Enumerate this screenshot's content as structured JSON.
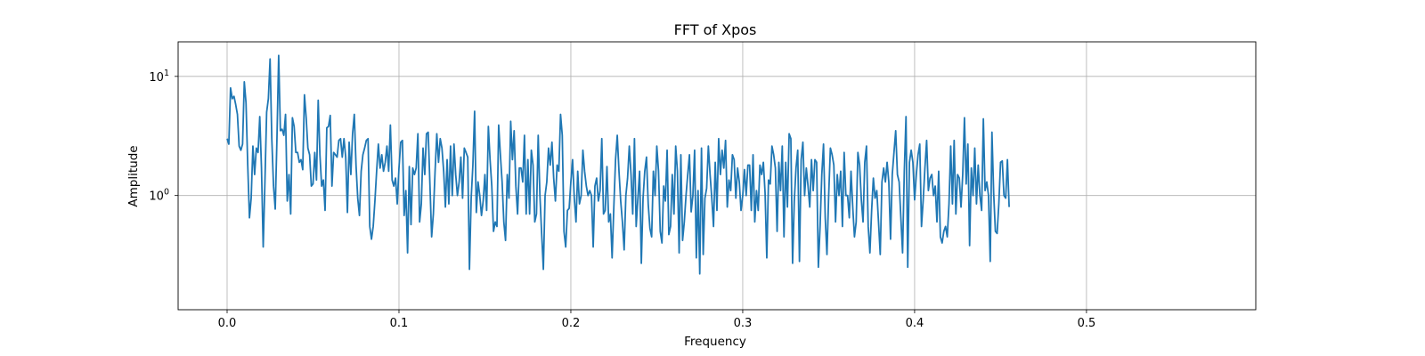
{
  "chart_data": {
    "type": "line",
    "title": "FFT of Xpos",
    "xlabel": "Frequency",
    "ylabel": "Amplitude",
    "xlim": [
      -0.0285,
      0.5985
    ],
    "ylim": [
      0.11,
      19.5
    ],
    "y_scale": "log",
    "grid": true,
    "legend": "none",
    "line_color": "#1f77b4",
    "x_ticks": [
      {
        "value": 0.0,
        "label": "0.0"
      },
      {
        "value": 0.1,
        "label": "0.1"
      },
      {
        "value": 0.2,
        "label": "0.2"
      },
      {
        "value": 0.3,
        "label": "0.3"
      },
      {
        "value": 0.4,
        "label": "0.4"
      },
      {
        "value": 0.5,
        "label": "0.5"
      }
    ],
    "y_ticks": [
      {
        "value": 1,
        "base": "10",
        "exp": "0"
      },
      {
        "value": 10,
        "base": "10",
        "exp": "1"
      }
    ],
    "series": [
      {
        "x_start": 0.0,
        "x_step": 0.001,
        "values": [
          3.0,
          2.7,
          8.0,
          6.5,
          6.8,
          5.8,
          4.8,
          2.6,
          2.4,
          2.7,
          9.0,
          6.0,
          1.8,
          0.65,
          0.95,
          2.6,
          1.5,
          2.5,
          2.3,
          4.6,
          1.7,
          0.37,
          1.3,
          5.0,
          6.5,
          14.0,
          3.0,
          1.2,
          0.77,
          3.0,
          15.0,
          3.5,
          3.6,
          3.2,
          4.8,
          0.9,
          1.5,
          0.7,
          4.5,
          3.8,
          2.3,
          2.3,
          1.9,
          2.0,
          1.65,
          7.0,
          4.5,
          2.5,
          2.2,
          1.2,
          1.25,
          2.3,
          1.35,
          6.3,
          2.2,
          1.2,
          1.35,
          0.75,
          3.7,
          3.8,
          4.7,
          1.2,
          2.3,
          2.2,
          2.1,
          2.9,
          3.0,
          2.1,
          3.0,
          2.1,
          0.72,
          2.8,
          1.5,
          3.3,
          4.8,
          1.8,
          0.95,
          0.68,
          1.6,
          2.2,
          2.5,
          2.9,
          3.0,
          0.55,
          0.43,
          0.55,
          0.9,
          1.6,
          2.7,
          1.7,
          2.2,
          1.6,
          1.9,
          2.6,
          1.6,
          3.9,
          1.35,
          1.2,
          1.4,
          0.85,
          1.7,
          2.8,
          2.9,
          0.68,
          1.1,
          0.33,
          1.75,
          0.57,
          1.7,
          1.5,
          1.7,
          3.3,
          0.6,
          0.85,
          2.5,
          1.5,
          3.3,
          3.4,
          1.25,
          0.45,
          0.7,
          1.6,
          3.3,
          1.9,
          3.0,
          2.5,
          1.6,
          0.8,
          2.0,
          0.85,
          2.6,
          1.0,
          2.7,
          1.5,
          1.0,
          1.3,
          2.1,
          0.95,
          2.5,
          2.3,
          2.1,
          0.24,
          0.95,
          1.8,
          5.1,
          0.72,
          1.3,
          1.0,
          0.68,
          0.9,
          1.5,
          0.75,
          3.8,
          2.0,
          1.2,
          0.5,
          0.6,
          0.55,
          3.9,
          2.2,
          1.3,
          0.6,
          0.42,
          1.5,
          0.95,
          4.2,
          2.0,
          3.5,
          1.2,
          0.7,
          1.7,
          1.7,
          1.3,
          3.2,
          0.7,
          2.0,
          0.7,
          2.4,
          1.8,
          0.6,
          0.7,
          3.2,
          1.0,
          0.48,
          0.24,
          1.0,
          1.3,
          2.5,
          1.8,
          2.8,
          1.4,
          0.9,
          1.8,
          1.6,
          4.8,
          3.2,
          0.5,
          0.37,
          0.75,
          0.78,
          1.3,
          2.0,
          0.95,
          0.6,
          1.6,
          0.85,
          1.0,
          2.4,
          1.6,
          1.2,
          1.0,
          1.1,
          1.0,
          0.37,
          1.2,
          1.4,
          0.9,
          1.1,
          3.0,
          0.7,
          0.75,
          1.75,
          0.6,
          0.7,
          0.3,
          0.8,
          2.0,
          3.2,
          1.6,
          0.9,
          0.6,
          0.35,
          1.0,
          1.4,
          2.6,
          1.5,
          0.7,
          3.0,
          0.55,
          0.95,
          1.6,
          0.27,
          0.95,
          1.6,
          2.1,
          0.85,
          0.53,
          0.45,
          1.6,
          1.0,
          2.6,
          1.6,
          0.5,
          0.4,
          1.2,
          0.9,
          2.4,
          0.47,
          0.55,
          1.5,
          0.7,
          2.6,
          1.6,
          0.33,
          2.2,
          0.42,
          0.6,
          1.0,
          1.5,
          2.2,
          0.73,
          1.0,
          2.4,
          0.3,
          1.1,
          0.22,
          2.5,
          0.32,
          0.95,
          1.15,
          2.6,
          1.5,
          0.95,
          0.55,
          1.9,
          0.75,
          3.0,
          1.5,
          2.4,
          1.7,
          2.9,
          0.8,
          1.35,
          1.1,
          2.2,
          2.0,
          0.95,
          1.7,
          1.3,
          0.75,
          1.0,
          1.65,
          1.0,
          1.8,
          1.8,
          0.75,
          2.2,
          0.6,
          1.1,
          0.75,
          1.8,
          1.5,
          1.9,
          1.05,
          0.3,
          1.35,
          1.25,
          2.6,
          2.2,
          1.7,
          0.5,
          1.9,
          1.1,
          2.6,
          0.45,
          1.9,
          0.8,
          3.3,
          3.0,
          0.27,
          0.9,
          1.7,
          2.4,
          0.28,
          2.0,
          2.8,
          1.0,
          1.7,
          1.2,
          0.8,
          2.0,
          1.1,
          2.0,
          1.9,
          0.25,
          0.55,
          1.5,
          2.7,
          0.65,
          0.32,
          1.0,
          2.5,
          2.2,
          1.8,
          0.6,
          1.5,
          1.0,
          1.6,
          0.55,
          2.3,
          1.0,
          1.0,
          0.65,
          1.6,
          0.8,
          0.45,
          0.6,
          2.3,
          1.8,
          0.92,
          0.6,
          1.9,
          2.6,
          0.55,
          0.33,
          0.75,
          1.4,
          0.95,
          1.1,
          0.6,
          0.32,
          1.3,
          1.7,
          1.3,
          1.9,
          1.3,
          0.43,
          1.5,
          2.3,
          3.5,
          1.5,
          1.3,
          0.65,
          0.33,
          1.6,
          4.6,
          0.25,
          1.9,
          2.4,
          1.9,
          0.92,
          1.5,
          2.2,
          2.7,
          0.55,
          0.92,
          1.7,
          2.9,
          1.1,
          1.4,
          1.5,
          1.0,
          1.2,
          0.6,
          1.6,
          0.45,
          0.4,
          0.5,
          0.55,
          0.45,
          0.85,
          2.6,
          0.85,
          2.9,
          0.7,
          1.5,
          1.4,
          0.8,
          1.5,
          4.5,
          1.25,
          2.7,
          0.38,
          1.7,
          1.0,
          2.5,
          0.85,
          1.8,
          1.0,
          0.75,
          4.4,
          1.1,
          1.3,
          1.0,
          0.28,
          3.4,
          1.05,
          0.5,
          0.48,
          0.85,
          1.9,
          1.95,
          1.0,
          0.95,
          2.0,
          0.8
        ]
      }
    ]
  }
}
